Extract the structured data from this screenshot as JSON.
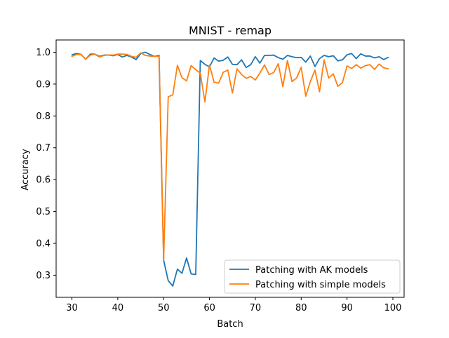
{
  "chart_data": {
    "type": "line",
    "title": "MNIST - remap",
    "xlabel": "Batch",
    "ylabel": "Accuracy",
    "xlim": [
      26.55,
      102.45
    ],
    "ylim": [
      0.2305,
      1.0385
    ],
    "xticks": [
      30,
      40,
      50,
      60,
      70,
      80,
      90,
      100
    ],
    "yticks": [
      0.3,
      0.4,
      0.5,
      0.6,
      0.7,
      0.8,
      0.9,
      1.0
    ],
    "xtick_labels": [
      "30",
      "40",
      "50",
      "60",
      "70",
      "80",
      "90",
      "100"
    ],
    "ytick_labels": [
      "0.3",
      "0.4",
      "0.5",
      "0.6",
      "0.7",
      "0.8",
      "0.9",
      "1.0"
    ],
    "grid": false,
    "legend_position": "lower-right",
    "x": [
      30,
      31,
      32,
      33,
      34,
      35,
      36,
      37,
      38,
      39,
      40,
      41,
      42,
      43,
      44,
      45,
      46,
      47,
      48,
      49,
      50,
      51,
      52,
      53,
      54,
      55,
      56,
      57,
      58,
      59,
      60,
      61,
      62,
      63,
      64,
      65,
      66,
      67,
      68,
      69,
      70,
      71,
      72,
      73,
      74,
      75,
      76,
      77,
      78,
      79,
      80,
      81,
      82,
      83,
      84,
      85,
      86,
      87,
      88,
      89,
      90,
      91,
      92,
      93,
      94,
      95,
      96,
      97,
      98,
      99
    ],
    "series": [
      {
        "name": "Patching with AK models",
        "color": "#1f77b4",
        "values": [
          0.992,
          0.996,
          0.993,
          0.978,
          0.994,
          0.994,
          0.987,
          0.991,
          0.991,
          0.989,
          0.993,
          0.985,
          0.99,
          0.985,
          0.977,
          0.996,
          1.0,
          0.993,
          0.987,
          0.99,
          0.347,
          0.283,
          0.266,
          0.319,
          0.306,
          0.354,
          0.304,
          0.302,
          0.974,
          0.962,
          0.954,
          0.982,
          0.972,
          0.975,
          0.985,
          0.962,
          0.961,
          0.976,
          0.952,
          0.961,
          0.986,
          0.966,
          0.99,
          0.99,
          0.991,
          0.983,
          0.978,
          0.99,
          0.986,
          0.983,
          0.984,
          0.969,
          0.988,
          0.955,
          0.98,
          0.99,
          0.986,
          0.989,
          0.973,
          0.976,
          0.992,
          0.996,
          0.98,
          0.995,
          0.988,
          0.988,
          0.982,
          0.986,
          0.977,
          0.984
        ]
      },
      {
        "name": "Patching with simple models",
        "color": "#ff7f0e",
        "values": [
          0.987,
          0.993,
          0.993,
          0.978,
          0.991,
          0.994,
          0.985,
          0.99,
          0.991,
          0.991,
          0.994,
          0.994,
          0.993,
          0.987,
          0.984,
          0.998,
          0.99,
          0.988,
          0.987,
          0.987,
          0.347,
          0.86,
          0.866,
          0.959,
          0.92,
          0.91,
          0.958,
          0.945,
          0.934,
          0.844,
          0.96,
          0.906,
          0.903,
          0.937,
          0.944,
          0.872,
          0.948,
          0.93,
          0.918,
          0.924,
          0.913,
          0.935,
          0.96,
          0.93,
          0.936,
          0.964,
          0.892,
          0.974,
          0.908,
          0.919,
          0.953,
          0.862,
          0.908,
          0.944,
          0.876,
          0.976,
          0.919,
          0.932,
          0.893,
          0.905,
          0.957,
          0.949,
          0.961,
          0.95,
          0.958,
          0.961,
          0.946,
          0.963,
          0.951,
          0.948
        ]
      }
    ]
  }
}
